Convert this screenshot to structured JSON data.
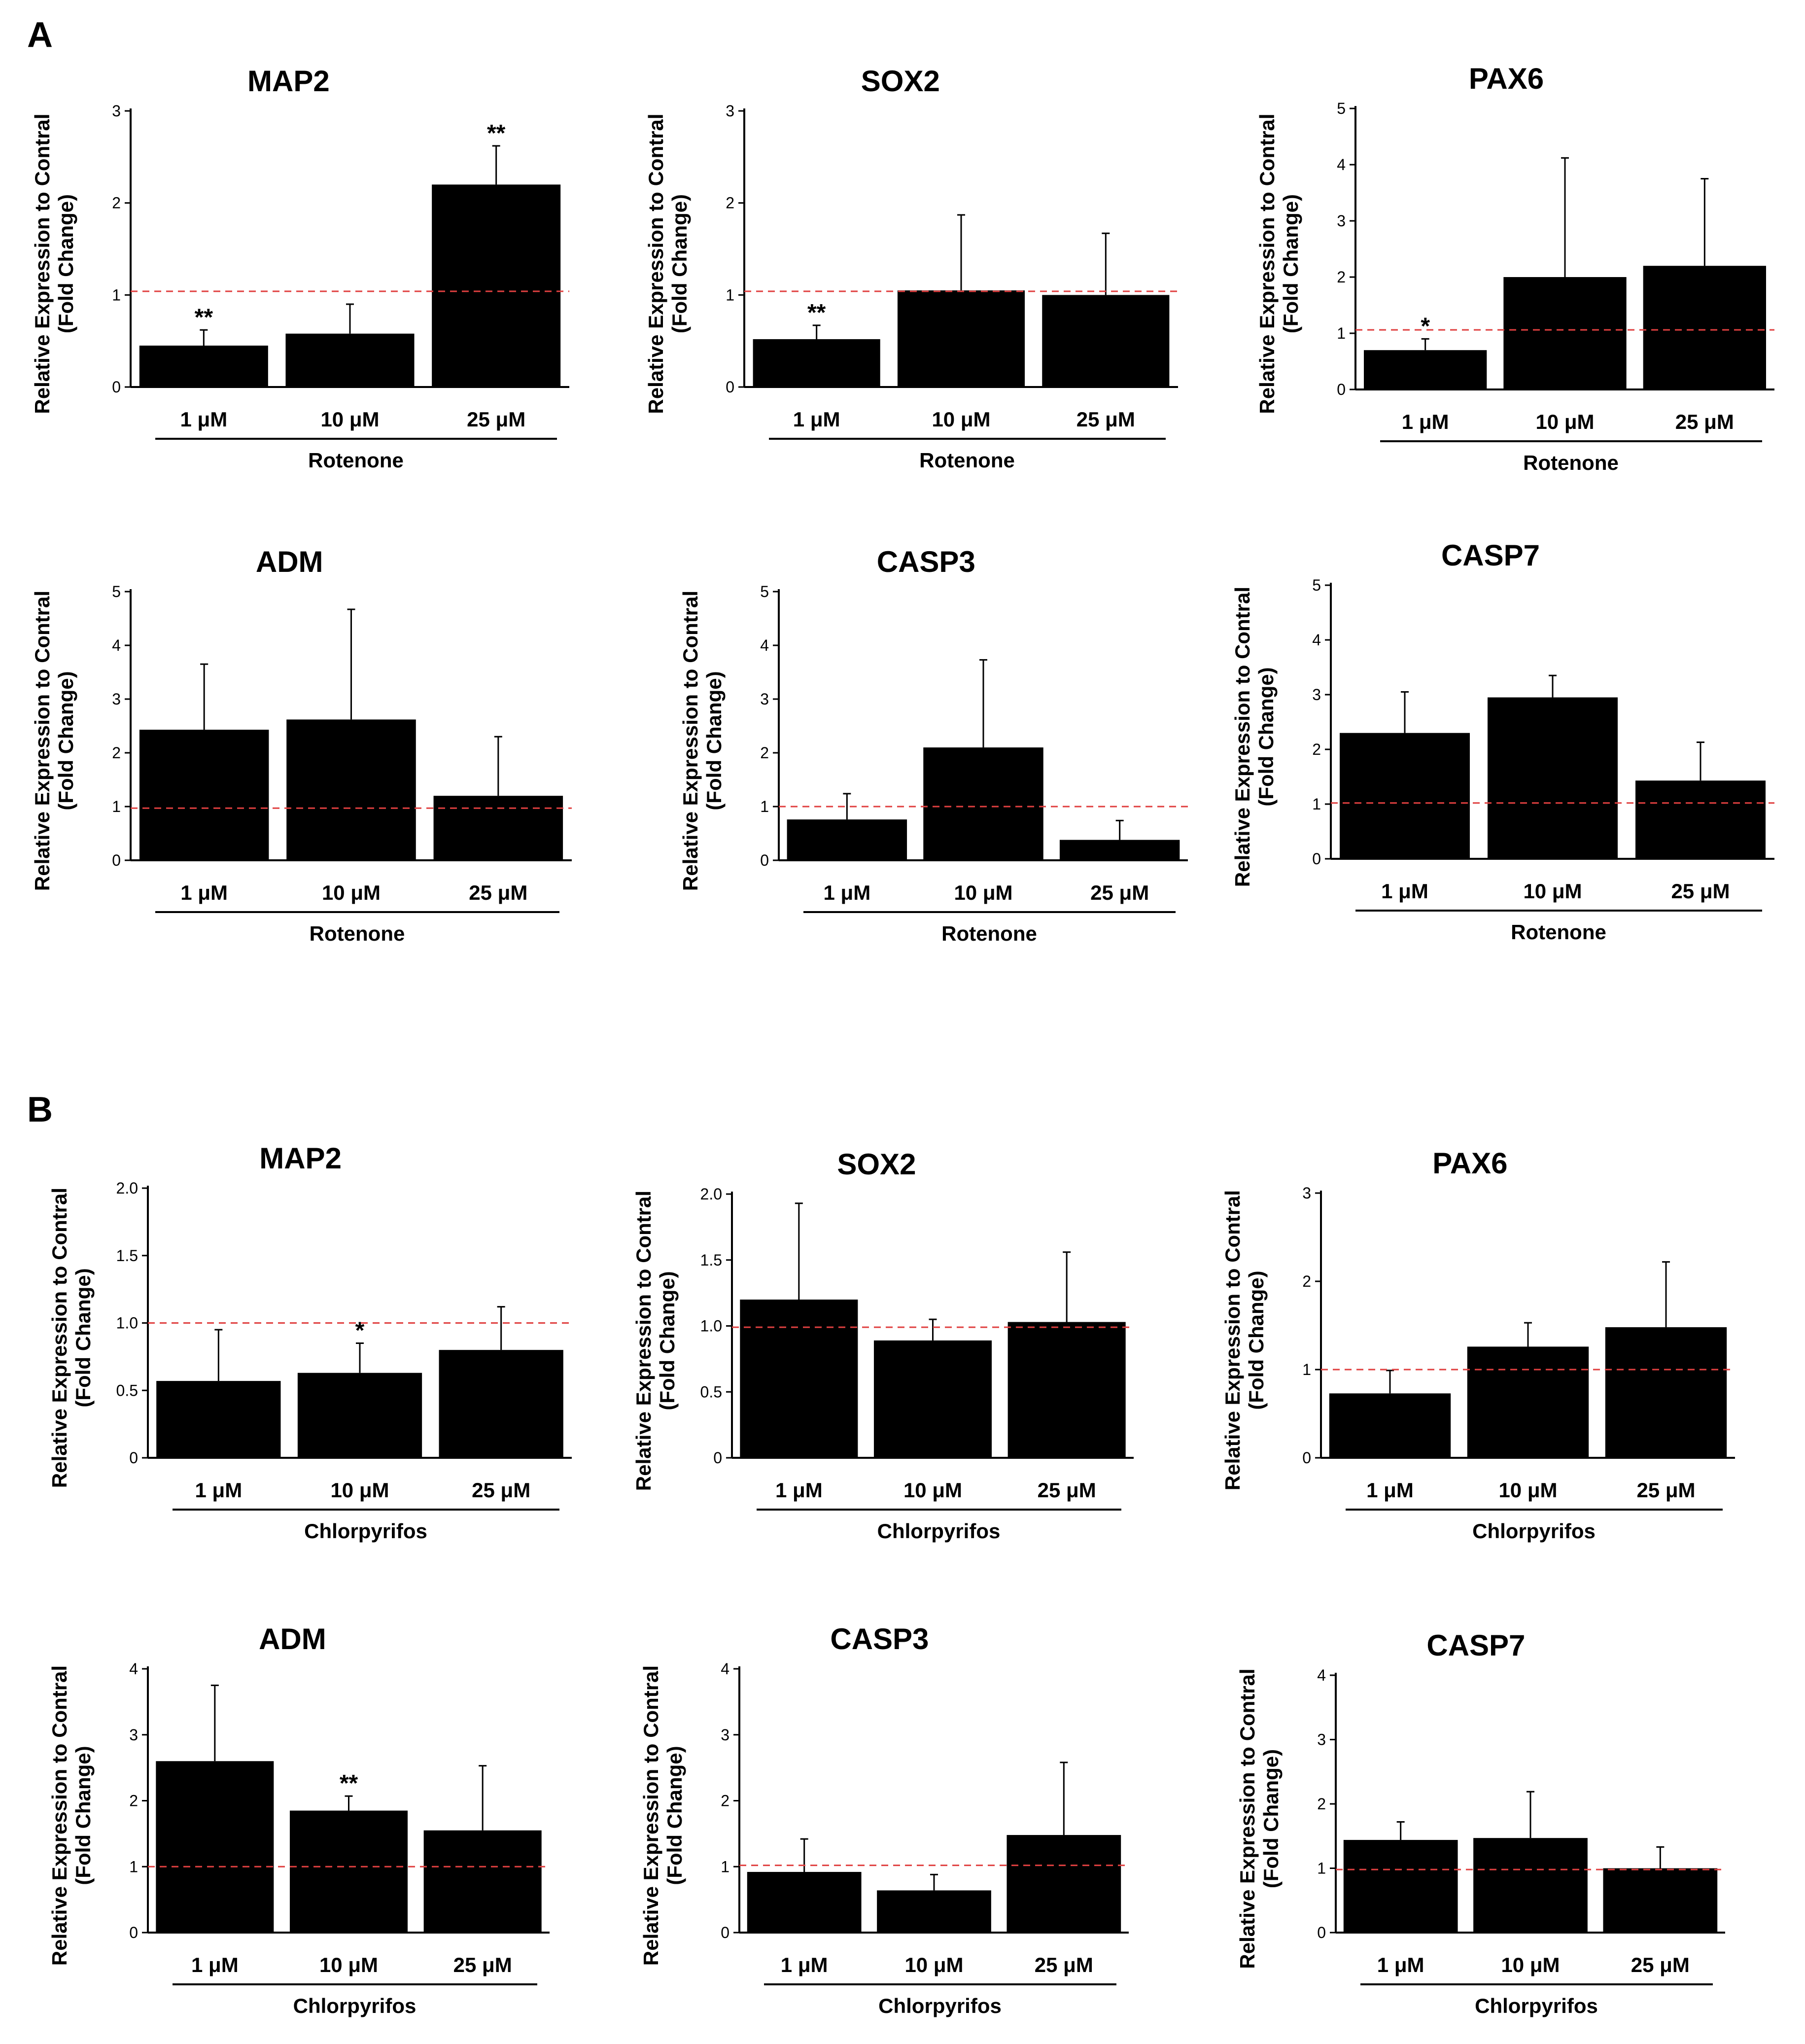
{
  "panels": [
    {
      "letter": "A"
    },
    {
      "letter": "B"
    }
  ],
  "colors": {
    "bar": "#000000",
    "axis": "#000000",
    "reference_line": "#e04040"
  },
  "chart_data": [
    {
      "type": "bar",
      "panel": "A",
      "title": "MAP2",
      "ylabel": [
        "Relative Expression to Contral",
        "(Fold Change)"
      ],
      "group_label": "Rotenone",
      "categories": [
        "1 μM",
        "10 μM",
        "25 μM"
      ],
      "values": [
        0.45,
        0.58,
        2.2
      ],
      "errors": [
        0.17,
        0.32,
        0.42
      ],
      "significance": [
        "**",
        "",
        "**"
      ],
      "ylim": [
        0,
        3
      ],
      "yticks": [
        "0",
        "1",
        "2",
        "3"
      ],
      "reference_line": 1.04
    },
    {
      "type": "bar",
      "panel": "A",
      "title": "SOX2",
      "ylabel": [
        "Relative Expression to Contral",
        "(Fold Change)"
      ],
      "group_label": "Rotenone",
      "categories": [
        "1 μM",
        "10 μM",
        "25 μM"
      ],
      "values": [
        0.52,
        1.05,
        1.0
      ],
      "errors": [
        0.15,
        0.82,
        0.67
      ],
      "significance": [
        "**",
        "",
        ""
      ],
      "ylim": [
        0,
        3
      ],
      "yticks": [
        "0",
        "1",
        "2",
        "3"
      ],
      "reference_line": 1.04
    },
    {
      "type": "bar",
      "panel": "A",
      "title": "PAX6",
      "ylabel": [
        "Relative Expression to Contral",
        "(Fold Change)"
      ],
      "group_label": "Rotenone",
      "categories": [
        "1 μM",
        "10 μM",
        "25 μM"
      ],
      "values": [
        0.7,
        2.0,
        2.2
      ],
      "errors": [
        0.2,
        2.12,
        1.55
      ],
      "significance": [
        "*",
        "",
        ""
      ],
      "ylim": [
        0,
        5
      ],
      "yticks": [
        "0",
        "1",
        "2",
        "3",
        "4",
        "5"
      ],
      "reference_line": 1.06
    },
    {
      "type": "bar",
      "panel": "A",
      "title": "ADM",
      "ylabel": [
        "Relative Expression to Contral",
        "(Fold Change)"
      ],
      "group_label": "Rotenone",
      "categories": [
        "1 μM",
        "10 μM",
        "25 μM"
      ],
      "values": [
        2.43,
        2.62,
        1.2
      ],
      "errors": [
        1.22,
        2.05,
        1.1
      ],
      "significance": [
        "",
        "",
        ""
      ],
      "ylim": [
        0,
        5
      ],
      "yticks": [
        "0",
        "1",
        "2",
        "3",
        "4",
        "5"
      ],
      "reference_line": 0.97
    },
    {
      "type": "bar",
      "panel": "A",
      "title": "CASP3",
      "ylabel": [
        "Relative Expression to Contral",
        "(Fold Change)"
      ],
      "group_label": "Rotenone",
      "categories": [
        "1 μM",
        "10 μM",
        "25 μM"
      ],
      "values": [
        0.76,
        2.1,
        0.38
      ],
      "errors": [
        0.48,
        1.63,
        0.36
      ],
      "significance": [
        "",
        "",
        ""
      ],
      "ylim": [
        0,
        5
      ],
      "yticks": [
        "0",
        "1",
        "2",
        "3",
        "4",
        "5"
      ],
      "reference_line": 1.0
    },
    {
      "type": "bar",
      "panel": "A",
      "title": "CASP7",
      "ylabel": [
        "Relative Expression to Contral",
        "(Fold Change)"
      ],
      "group_label": "Rotenone",
      "categories": [
        "1 μM",
        "10 μM",
        "25 μM"
      ],
      "values": [
        2.3,
        2.95,
        1.43
      ],
      "errors": [
        0.75,
        0.4,
        0.7
      ],
      "significance": [
        "",
        "",
        ""
      ],
      "ylim": [
        0,
        5
      ],
      "yticks": [
        "0",
        "1",
        "2",
        "3",
        "4",
        "5"
      ],
      "reference_line": 1.02
    },
    {
      "type": "bar",
      "panel": "B",
      "title": "MAP2",
      "ylabel": [
        "Relative Expression to Contral",
        "(Fold Change)"
      ],
      "group_label": "Chlorpyrifos",
      "categories": [
        "1 μM",
        "10 μM",
        "25 μM"
      ],
      "values": [
        0.57,
        0.63,
        0.8
      ],
      "errors": [
        0.38,
        0.22,
        0.32
      ],
      "significance": [
        "",
        "*",
        ""
      ],
      "ylim": [
        0,
        2.0
      ],
      "yticks": [
        "0",
        "0.5",
        "1.0",
        "1.5",
        "2.0"
      ],
      "reference_line": 1.0
    },
    {
      "type": "bar",
      "panel": "B",
      "title": "SOX2",
      "ylabel": [
        "Relative Expression to Contral",
        "(Fold Change)"
      ],
      "group_label": "Chlorpyrifos",
      "categories": [
        "1 μM",
        "10 μM",
        "25 μM"
      ],
      "values": [
        1.2,
        0.89,
        1.03
      ],
      "errors": [
        0.73,
        0.16,
        0.53
      ],
      "significance": [
        "",
        "",
        ""
      ],
      "ylim": [
        0,
        2.0
      ],
      "yticks": [
        "0",
        "0.5",
        "1.0",
        "1.5",
        "2.0"
      ],
      "reference_line": 0.99
    },
    {
      "type": "bar",
      "panel": "B",
      "title": "PAX6",
      "ylabel": [
        "Relative Expression to Contral",
        "(Fold Change)"
      ],
      "group_label": "Chlorpyrifos",
      "categories": [
        "1 μM",
        "10 μM",
        "25 μM"
      ],
      "values": [
        0.73,
        1.26,
        1.48
      ],
      "errors": [
        0.26,
        0.27,
        0.74
      ],
      "significance": [
        "",
        "",
        ""
      ],
      "ylim": [
        0,
        3
      ],
      "yticks": [
        "0",
        "1",
        "2",
        "3"
      ],
      "reference_line": 1.0
    },
    {
      "type": "bar",
      "panel": "B",
      "title": "ADM",
      "ylabel": [
        "Relative Expression to Contral",
        "(Fold Change)"
      ],
      "group_label": "Chlorpyrifos",
      "categories": [
        "1 μM",
        "10 μM",
        "25 μM"
      ],
      "values": [
        2.6,
        1.85,
        1.55
      ],
      "errors": [
        1.15,
        0.22,
        0.98
      ],
      "significance": [
        "",
        "**",
        ""
      ],
      "ylim": [
        0,
        4
      ],
      "yticks": [
        "0",
        "1",
        "2",
        "3",
        "4"
      ],
      "reference_line": 1.0
    },
    {
      "type": "bar",
      "panel": "B",
      "title": "CASP3",
      "ylabel": [
        "Relative Expression to Contral",
        "(Fold Change)"
      ],
      "group_label": "Chlorpyrifos",
      "categories": [
        "1 μM",
        "10 μM",
        "25 μM"
      ],
      "values": [
        0.92,
        0.64,
        1.48
      ],
      "errors": [
        0.5,
        0.24,
        1.1
      ],
      "significance": [
        "",
        "",
        ""
      ],
      "ylim": [
        0,
        4
      ],
      "yticks": [
        "0",
        "1",
        "2",
        "3",
        "4"
      ],
      "reference_line": 1.02
    },
    {
      "type": "bar",
      "panel": "B",
      "title": "CASP7",
      "ylabel": [
        "Relative Expression to Contral",
        "(Fold Change)"
      ],
      "group_label": "Chlorpyrifos",
      "categories": [
        "1 μM",
        "10 μM",
        "25 μM"
      ],
      "values": [
        1.44,
        1.47,
        1.0
      ],
      "errors": [
        0.28,
        0.72,
        0.33
      ],
      "significance": [
        "",
        "",
        ""
      ],
      "ylim": [
        0,
        4
      ],
      "yticks": [
        "0",
        "1",
        "2",
        "3",
        "4"
      ],
      "reference_line": 0.98
    }
  ]
}
